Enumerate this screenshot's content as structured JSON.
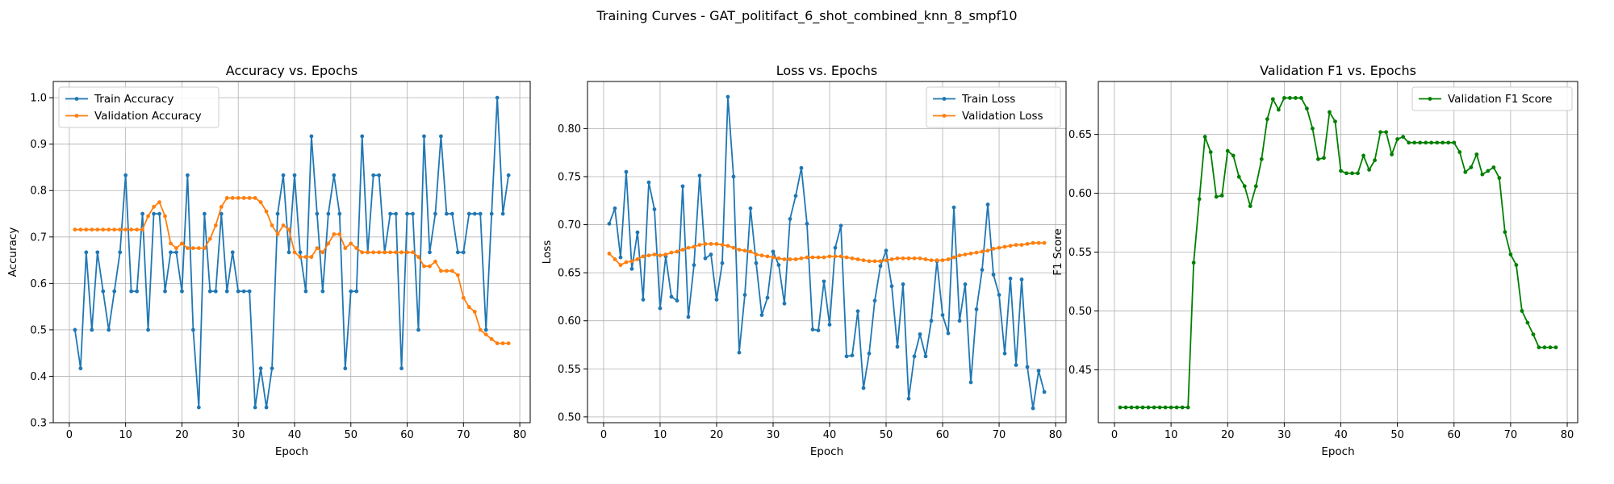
{
  "figure": {
    "suptitle": "Training Curves - GAT_politifact_6_shot_combined_knn_8_smpf10"
  },
  "chart_data": [
    {
      "type": "line",
      "title": "Accuracy vs. Epochs",
      "xlabel": "Epoch",
      "ylabel": "Accuracy",
      "xlim": [
        -2.85,
        81.85
      ],
      "ylim": [
        0.3,
        1.035
      ],
      "xticks": [
        0,
        10,
        20,
        30,
        40,
        50,
        60,
        70,
        80
      ],
      "yticks": [
        0.3,
        0.4,
        0.5,
        0.6,
        0.7,
        0.8,
        0.9,
        1.0
      ],
      "ytick_labels": [
        "0.3",
        "0.4",
        "0.5",
        "0.6",
        "0.7",
        "0.8",
        "0.9",
        "1.0"
      ],
      "grid": true,
      "legend": "upper left",
      "series": [
        {
          "name": "Train Accuracy",
          "color": "#1f77b4",
          "values": [
            0.5,
            0.417,
            0.667,
            0.5,
            0.667,
            0.583,
            0.5,
            0.583,
            0.667,
            0.833,
            0.583,
            0.583,
            0.75,
            0.5,
            0.75,
            0.75,
            0.583,
            0.667,
            0.667,
            0.583,
            0.833,
            0.5,
            0.333,
            0.75,
            0.583,
            0.583,
            0.75,
            0.583,
            0.667,
            0.583,
            0.583,
            0.583,
            0.333,
            0.417,
            0.333,
            0.417,
            0.75,
            0.833,
            0.667,
            0.833,
            0.667,
            0.583,
            0.917,
            0.75,
            0.583,
            0.75,
            0.833,
            0.75,
            0.417,
            0.583,
            0.583,
            0.917,
            0.667,
            0.833,
            0.833,
            0.667,
            0.75,
            0.75,
            0.417,
            0.75,
            0.75,
            0.5,
            0.917,
            0.667,
            0.75,
            0.917,
            0.75,
            0.75,
            0.667,
            0.667,
            0.75,
            0.75,
            0.75,
            0.5,
            0.75,
            1.0,
            0.75,
            0.833
          ]
        },
        {
          "name": "Validation Accuracy",
          "color": "#ff7f0e",
          "values": [
            0.716,
            0.716,
            0.716,
            0.716,
            0.716,
            0.716,
            0.716,
            0.716,
            0.716,
            0.716,
            0.716,
            0.716,
            0.716,
            0.745,
            0.765,
            0.775,
            0.745,
            0.686,
            0.676,
            0.686,
            0.676,
            0.676,
            0.676,
            0.676,
            0.696,
            0.725,
            0.765,
            0.784,
            0.784,
            0.784,
            0.784,
            0.784,
            0.784,
            0.775,
            0.755,
            0.725,
            0.706,
            0.725,
            0.716,
            0.667,
            0.657,
            0.657,
            0.657,
            0.676,
            0.667,
            0.686,
            0.706,
            0.706,
            0.676,
            0.686,
            0.676,
            0.667,
            0.667,
            0.667,
            0.667,
            0.667,
            0.667,
            0.667,
            0.667,
            0.667,
            0.667,
            0.657,
            0.637,
            0.637,
            0.647,
            0.627,
            0.627,
            0.627,
            0.618,
            0.569,
            0.549,
            0.539,
            0.5,
            0.49,
            0.48,
            0.471,
            0.471,
            0.471
          ]
        }
      ]
    },
    {
      "type": "line",
      "title": "Loss vs. Epochs",
      "xlabel": "Epoch",
      "ylabel": "Loss",
      "xlim": [
        -2.85,
        81.85
      ],
      "ylim": [
        0.494,
        0.849
      ],
      "xticks": [
        0,
        10,
        20,
        30,
        40,
        50,
        60,
        70,
        80
      ],
      "yticks": [
        0.5,
        0.55,
        0.6,
        0.65,
        0.7,
        0.75,
        0.8
      ],
      "ytick_labels": [
        "0.50",
        "0.55",
        "0.60",
        "0.65",
        "0.70",
        "0.75",
        "0.80"
      ],
      "grid": true,
      "legend": "upper right",
      "series": [
        {
          "name": "Train Loss",
          "color": "#1f77b4",
          "values": [
            0.701,
            0.717,
            0.666,
            0.755,
            0.654,
            0.692,
            0.622,
            0.744,
            0.716,
            0.613,
            0.667,
            0.625,
            0.621,
            0.74,
            0.604,
            0.658,
            0.751,
            0.665,
            0.669,
            0.622,
            0.66,
            0.833,
            0.75,
            0.567,
            0.627,
            0.717,
            0.66,
            0.606,
            0.624,
            0.672,
            0.658,
            0.618,
            0.706,
            0.73,
            0.759,
            0.701,
            0.591,
            0.59,
            0.641,
            0.596,
            0.676,
            0.699,
            0.563,
            0.564,
            0.61,
            0.53,
            0.566,
            0.621,
            0.657,
            0.673,
            0.636,
            0.573,
            0.638,
            0.519,
            0.563,
            0.586,
            0.563,
            0.6,
            0.662,
            0.606,
            0.587,
            0.718,
            0.6,
            0.638,
            0.536,
            0.612,
            0.653,
            0.721,
            0.648,
            0.627,
            0.566,
            0.644,
            0.554,
            0.643,
            0.552,
            0.509,
            0.548,
            0.526
          ]
        },
        {
          "name": "Validation Loss",
          "color": "#ff7f0e",
          "values": [
            0.67,
            0.664,
            0.658,
            0.661,
            0.662,
            0.664,
            0.667,
            0.668,
            0.669,
            0.668,
            0.669,
            0.671,
            0.672,
            0.674,
            0.676,
            0.677,
            0.679,
            0.68,
            0.68,
            0.68,
            0.679,
            0.678,
            0.676,
            0.674,
            0.673,
            0.672,
            0.669,
            0.668,
            0.667,
            0.666,
            0.665,
            0.664,
            0.664,
            0.664,
            0.665,
            0.666,
            0.666,
            0.666,
            0.666,
            0.667,
            0.667,
            0.667,
            0.666,
            0.665,
            0.664,
            0.663,
            0.662,
            0.662,
            0.662,
            0.663,
            0.664,
            0.665,
            0.665,
            0.665,
            0.665,
            0.665,
            0.664,
            0.663,
            0.663,
            0.663,
            0.664,
            0.666,
            0.668,
            0.669,
            0.67,
            0.671,
            0.672,
            0.673,
            0.675,
            0.676,
            0.677,
            0.678,
            0.679,
            0.679,
            0.68,
            0.681,
            0.681,
            0.681
          ]
        }
      ]
    },
    {
      "type": "line",
      "title": "Validation F1 vs. Epochs",
      "xlabel": "Epoch",
      "ylabel": "F1 Score",
      "xlim": [
        -2.85,
        81.85
      ],
      "ylim": [
        0.405,
        0.695
      ],
      "xticks": [
        0,
        10,
        20,
        30,
        40,
        50,
        60,
        70,
        80
      ],
      "yticks": [
        0.45,
        0.5,
        0.55,
        0.6,
        0.65
      ],
      "ytick_labels": [
        "0.45",
        "0.50",
        "0.55",
        "0.60",
        "0.65"
      ],
      "grid": true,
      "legend": "upper right",
      "series": [
        {
          "name": "Validation F1 Score",
          "color": "#008000",
          "values": [
            0.418,
            0.418,
            0.418,
            0.418,
            0.418,
            0.418,
            0.418,
            0.418,
            0.418,
            0.418,
            0.418,
            0.418,
            0.418,
            0.541,
            0.595,
            0.648,
            0.635,
            0.597,
            0.598,
            0.636,
            0.632,
            0.614,
            0.606,
            0.589,
            0.606,
            0.629,
            0.663,
            0.68,
            0.671,
            0.681,
            0.681,
            0.681,
            0.681,
            0.672,
            0.655,
            0.629,
            0.63,
            0.669,
            0.661,
            0.619,
            0.617,
            0.617,
            0.617,
            0.632,
            0.62,
            0.628,
            0.652,
            0.652,
            0.633,
            0.646,
            0.648,
            0.643,
            0.643,
            0.643,
            0.643,
            0.643,
            0.643,
            0.643,
            0.643,
            0.643,
            0.635,
            0.618,
            0.622,
            0.633,
            0.616,
            0.619,
            0.622,
            0.613,
            0.567,
            0.548,
            0.539,
            0.5,
            0.49,
            0.48,
            0.469,
            0.469,
            0.469,
            0.469
          ]
        }
      ]
    }
  ]
}
